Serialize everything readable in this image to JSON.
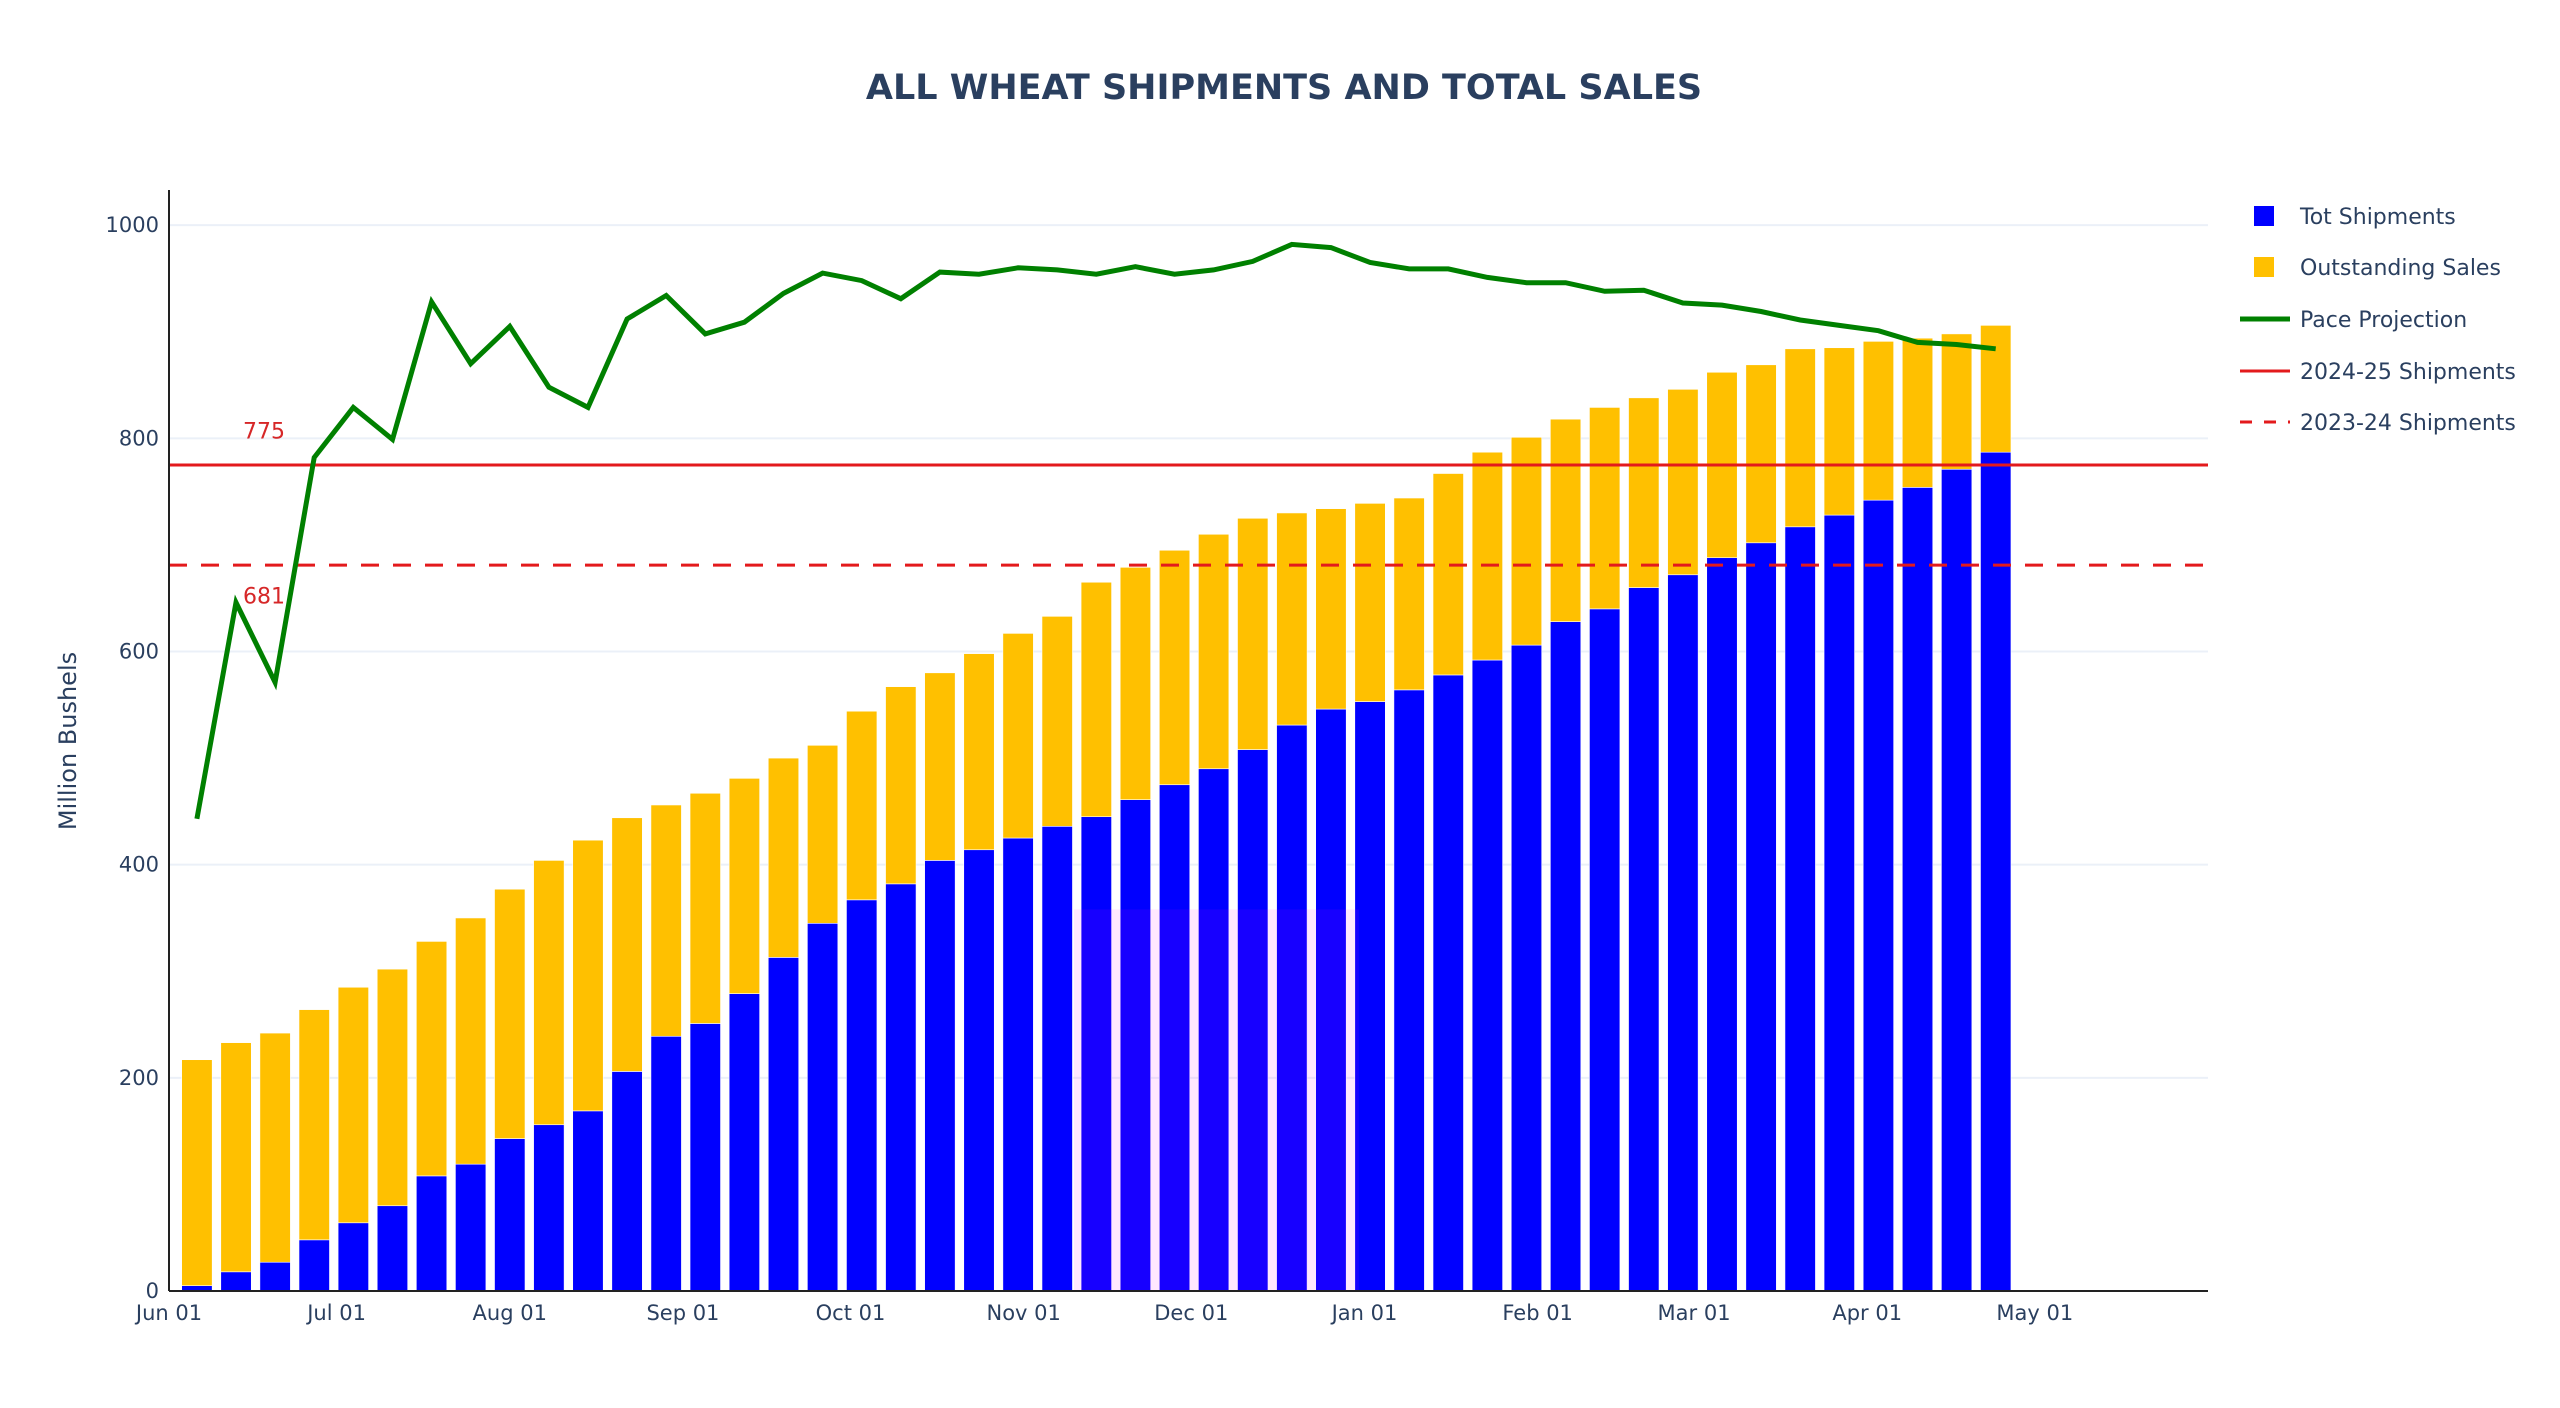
{
  "chart_data": {
    "type": "bar",
    "title": "ALL WHEAT SHIPMENTS AND TOTAL SALES",
    "xlabel": "",
    "ylabel": "Million Bushels",
    "barmode": "stack",
    "grid": true,
    "legend_position": "top-right",
    "xlim": [
      "2024-06-01",
      "2025-06-01"
    ],
    "ylim": [
      0,
      1033
    ],
    "x_ticks": [
      {
        "date": "2024-06-01",
        "label": "Jun 01"
      },
      {
        "date": "2024-07-01",
        "label": "Jul 01"
      },
      {
        "date": "2024-08-01",
        "label": "Aug 01"
      },
      {
        "date": "2024-09-01",
        "label": "Sep 01"
      },
      {
        "date": "2024-10-01",
        "label": "Oct 01"
      },
      {
        "date": "2024-11-01",
        "label": "Nov 01"
      },
      {
        "date": "2024-12-01",
        "label": "Dec 01"
      },
      {
        "date": "2025-01-01",
        "label": "Jan 01"
      },
      {
        "date": "2025-02-01",
        "label": "Feb 01"
      },
      {
        "date": "2025-03-01",
        "label": "Mar 01"
      },
      {
        "date": "2025-04-01",
        "label": "Apr 01"
      },
      {
        "date": "2025-05-01",
        "label": "May 01"
      }
    ],
    "y_ticks": [
      0,
      200,
      400,
      600,
      800,
      1000
    ],
    "x_start": "2024-06-06",
    "x_step_days": 7,
    "series": [
      {
        "name": "Tot Shipments",
        "kind": "bar",
        "color": "#0000ff",
        "values": [
          5,
          18,
          27,
          48,
          64,
          80,
          108,
          119,
          143,
          156,
          169,
          206,
          239,
          251,
          279,
          313,
          345,
          367,
          382,
          404,
          414,
          425,
          436,
          445,
          461,
          475,
          490,
          508,
          531,
          546,
          553,
          564,
          578,
          592,
          606,
          628,
          640,
          660,
          672,
          688,
          702,
          717,
          728,
          742,
          754,
          771,
          787
        ]
      },
      {
        "name": "Outstanding Sales",
        "kind": "bar",
        "color": "#ffc000",
        "values": [
          212,
          215,
          215,
          216,
          221,
          222,
          220,
          231,
          234,
          248,
          254,
          238,
          217,
          216,
          202,
          187,
          167,
          177,
          185,
          176,
          184,
          192,
          197,
          220,
          218,
          220,
          220,
          217,
          199,
          188,
          186,
          180,
          189,
          195,
          195,
          190,
          189,
          178,
          174,
          174,
          167,
          167,
          157,
          149,
          140,
          127,
          119
        ]
      },
      {
        "name": "Pace Projection",
        "kind": "line",
        "color": "#008000",
        "values": [
          443,
          646,
          571,
          782,
          829,
          799,
          928,
          870,
          905,
          848,
          829,
          912,
          934,
          898,
          909,
          936,
          955,
          948,
          931,
          956,
          954,
          960,
          958,
          954,
          961,
          954,
          958,
          966,
          982,
          979,
          965,
          959,
          959,
          951,
          946,
          946,
          938,
          939,
          927,
          925,
          919,
          911,
          906,
          901,
          890,
          888,
          884
        ]
      },
      {
        "name": "2024-25 Shipments",
        "kind": "hline",
        "color": "#e31a1c",
        "dash": "solid",
        "value": 775
      },
      {
        "name": "2023-24 Shipments",
        "kind": "hline",
        "color": "#e31a1c",
        "dash": "dash",
        "value": 681
      }
    ],
    "annotations": [
      {
        "text": "775",
        "date": "2024-06-18",
        "value": 800,
        "color": "#d62728"
      },
      {
        "text": "681",
        "date": "2024-06-18",
        "value": 645,
        "color": "#d62728"
      }
    ],
    "highlight_region": {
      "x0": "2024-11-10",
      "x1": "2024-12-31",
      "y0": 0,
      "y1": 358,
      "color": "#ff00ff"
    }
  }
}
